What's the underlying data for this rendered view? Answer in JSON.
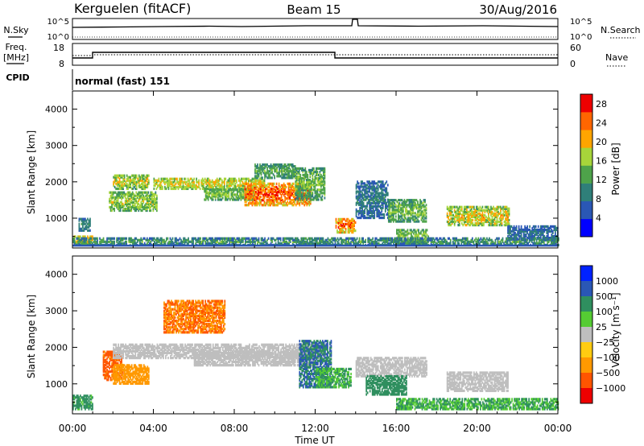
{
  "header": {
    "title": "Kerguelen (fitACF)",
    "beam": "Beam 15",
    "date": "30/Aug/2016"
  },
  "top_panels": {
    "nsky_label": "N.Sky",
    "nsky_ticks": [
      "10^5",
      "10^0"
    ],
    "nsearch_label": "N.Search",
    "nsearch_ticks": [
      "10^5",
      "10^0"
    ],
    "freq_label": "Freq.",
    "freq_unit": "[MHz]",
    "freq_ticks": [
      "18",
      "8"
    ],
    "nave_label": "Nave",
    "nave_ticks": [
      "60",
      "0"
    ],
    "cpid_label": "CPID",
    "cpid_text": "normal (fast) 151"
  },
  "colors": {
    "power": [
      "#0000ff",
      "#2a57b5",
      "#2f7f79",
      "#4ea34a",
      "#a7d53a",
      "#ffa500",
      "#ff6600",
      "#ee0000"
    ],
    "velocity": [
      "#0022ff",
      "#2a57b5",
      "#2f8f5f",
      "#55cc33",
      "#bebebe",
      "#ffcc11",
      "#ff9900",
      "#ff5500",
      "#ee0000"
    ],
    "ground": "#bebebe"
  },
  "chart_data": [
    {
      "type": "heatmap",
      "name": "power",
      "ylabel": "Slant Range [km]",
      "ylim": [
        180,
        4500
      ],
      "yticks": [
        "1000",
        "2000",
        "3000",
        "4000"
      ],
      "xlim": [
        0,
        24
      ],
      "colorbar": {
        "label": "Power [dB]",
        "ticks": [
          "4",
          "8",
          "12",
          "16",
          "20",
          "24",
          "28"
        ],
        "range": [
          0,
          30
        ]
      },
      "echo_regions": [
        {
          "t0": 0.0,
          "t1": 1.0,
          "r0": 300,
          "r1": 500,
          "v0": 16,
          "v1": 24
        },
        {
          "t0": 0.3,
          "t1": 0.9,
          "r0": 650,
          "r1": 1000,
          "v0": 6,
          "v1": 12
        },
        {
          "t0": 1.8,
          "t1": 4.2,
          "r0": 1200,
          "r1": 1700,
          "v0": 10,
          "v1": 20
        },
        {
          "t0": 2.0,
          "t1": 3.8,
          "r0": 1800,
          "r1": 2200,
          "v0": 10,
          "v1": 22
        },
        {
          "t0": 4.0,
          "t1": 9.5,
          "r0": 1800,
          "r1": 2100,
          "v0": 12,
          "v1": 22
        },
        {
          "t0": 6.5,
          "t1": 9.0,
          "r0": 1500,
          "r1": 1800,
          "v0": 10,
          "v1": 18
        },
        {
          "t0": 8.5,
          "t1": 11.8,
          "r0": 1350,
          "r1": 1950,
          "v0": 16,
          "v1": 30
        },
        {
          "t0": 9.0,
          "t1": 11.0,
          "r0": 2100,
          "r1": 2500,
          "v0": 8,
          "v1": 16
        },
        {
          "t0": 11.0,
          "t1": 12.5,
          "r0": 1500,
          "r1": 2400,
          "v0": 8,
          "v1": 18
        },
        {
          "t0": 13.0,
          "t1": 14.0,
          "r0": 600,
          "r1": 1000,
          "v0": 14,
          "v1": 30
        },
        {
          "t0": 14.0,
          "t1": 15.6,
          "r0": 1000,
          "r1": 2000,
          "v0": 4,
          "v1": 12
        },
        {
          "t0": 15.6,
          "t1": 17.5,
          "r0": 900,
          "r1": 1500,
          "v0": 8,
          "v1": 18
        },
        {
          "t0": 16.0,
          "t1": 17.6,
          "r0": 300,
          "r1": 700,
          "v0": 10,
          "v1": 18
        },
        {
          "t0": 18.5,
          "t1": 21.6,
          "r0": 800,
          "r1": 1300,
          "v0": 10,
          "v1": 24
        },
        {
          "t0": 21.5,
          "t1": 24.0,
          "r0": 400,
          "r1": 800,
          "v0": 4,
          "v1": 10
        },
        {
          "t0": 0.0,
          "t1": 24.0,
          "r0": 250,
          "r1": 450,
          "v0": 4,
          "v1": 16
        }
      ]
    },
    {
      "type": "heatmap",
      "name": "velocity",
      "xlabel": "Time UT",
      "ylabel": "Slant Range [km]",
      "ylim": [
        180,
        4500
      ],
      "yticks": [
        "1000",
        "2000",
        "3000",
        "4000"
      ],
      "xlim": [
        0,
        24
      ],
      "xticks": [
        "00:00",
        "04:00",
        "08:00",
        "12:00",
        "16:00",
        "20:00",
        "00:00"
      ],
      "colorbar": {
        "label": "Velocity [m s⁻¹]",
        "ticks": [
          "1000",
          "500",
          "100",
          "25",
          "−25",
          "−100",
          "−500",
          "−1000"
        ]
      },
      "echo_regions": [
        {
          "t0": 1.5,
          "t1": 2.5,
          "r0": 1100,
          "r1": 1900,
          "v": -400
        },
        {
          "t0": 2.0,
          "t1": 3.8,
          "r0": 1000,
          "r1": 1500,
          "v": -120
        },
        {
          "t0": 2.0,
          "t1": 12.5,
          "r0": 1700,
          "r1": 2100,
          "v": 0
        },
        {
          "t0": 6.0,
          "t1": 12.0,
          "r0": 1500,
          "r1": 1900,
          "v": 0
        },
        {
          "t0": 4.5,
          "t1": 7.5,
          "r0": 2400,
          "r1": 3300,
          "v": -300
        },
        {
          "t0": 11.2,
          "t1": 12.8,
          "r0": 900,
          "r1": 2200,
          "v": 300
        },
        {
          "t0": 12.0,
          "t1": 13.8,
          "r0": 900,
          "r1": 1400,
          "v": 60
        },
        {
          "t0": 14.0,
          "t1": 17.5,
          "r0": 1200,
          "r1": 1700,
          "v": 0
        },
        {
          "t0": 14.5,
          "t1": 16.5,
          "r0": 700,
          "r1": 1200,
          "v": 200
        },
        {
          "t0": 18.5,
          "t1": 21.5,
          "r0": 800,
          "r1": 1300,
          "v": 0
        },
        {
          "t0": 0.0,
          "t1": 1.0,
          "r0": 300,
          "r1": 700,
          "v": 80
        },
        {
          "t0": 16.0,
          "t1": 24.0,
          "r0": 300,
          "r1": 600,
          "v": 60
        }
      ]
    }
  ]
}
